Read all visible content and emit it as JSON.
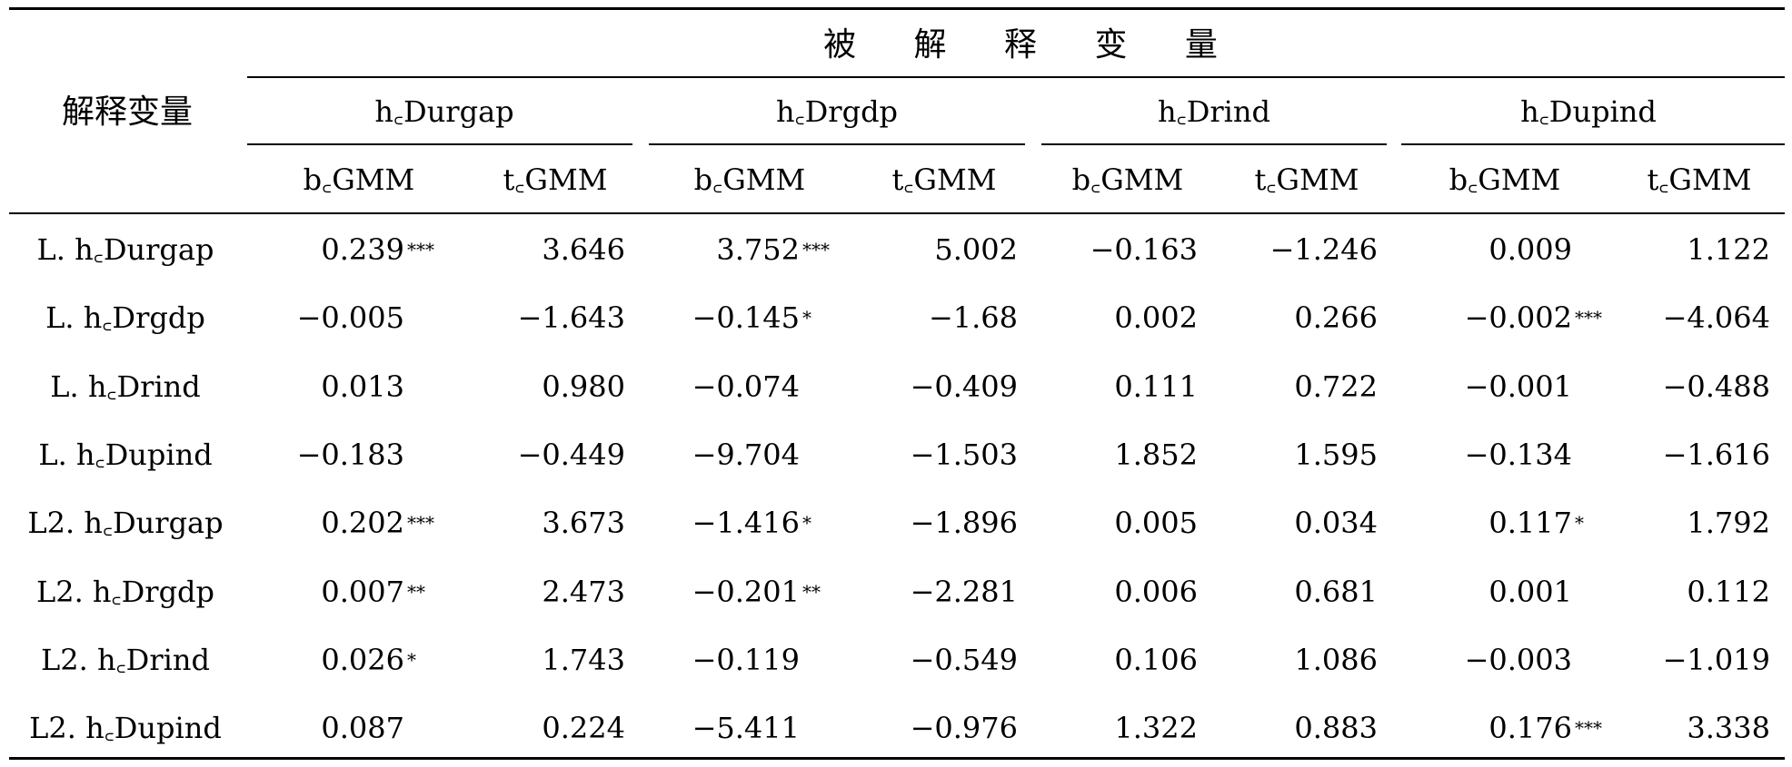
{
  "table": {
    "row_header": "解释变量",
    "group_header": "被 解 释 变 量",
    "dependents": [
      "h꜀Durgap",
      "h꜀Drgdp",
      "h꜀Drind",
      "h꜀Dupind"
    ],
    "subcols": [
      "b꜀GMM",
      "t꜀GMM"
    ],
    "rows": [
      {
        "label": "L. h꜀Durgap",
        "cells": [
          [
            "0.239",
            "***"
          ],
          [
            "3.646",
            ""
          ],
          [
            "3.752",
            "***"
          ],
          [
            "5.002",
            ""
          ],
          [
            "−0.163",
            ""
          ],
          [
            "−1.246",
            ""
          ],
          [
            "0.009",
            ""
          ],
          [
            "1.122",
            ""
          ]
        ]
      },
      {
        "label": "L. h꜀Drgdp",
        "cells": [
          [
            "−0.005",
            ""
          ],
          [
            "−1.643",
            ""
          ],
          [
            "−0.145",
            "*"
          ],
          [
            "−1.68",
            ""
          ],
          [
            "0.002",
            ""
          ],
          [
            "0.266",
            ""
          ],
          [
            "−0.002",
            "***"
          ],
          [
            "−4.064",
            ""
          ]
        ]
      },
      {
        "label": "L. h꜀Drind",
        "cells": [
          [
            "0.013",
            ""
          ],
          [
            "0.980",
            ""
          ],
          [
            "−0.074",
            ""
          ],
          [
            "−0.409",
            ""
          ],
          [
            "0.111",
            ""
          ],
          [
            "0.722",
            ""
          ],
          [
            "−0.001",
            ""
          ],
          [
            "−0.488",
            ""
          ]
        ]
      },
      {
        "label": "L. h꜀Dupind",
        "cells": [
          [
            "−0.183",
            ""
          ],
          [
            "−0.449",
            ""
          ],
          [
            "−9.704",
            ""
          ],
          [
            "−1.503",
            ""
          ],
          [
            "1.852",
            ""
          ],
          [
            "1.595",
            ""
          ],
          [
            "−0.134",
            ""
          ],
          [
            "−1.616",
            ""
          ]
        ]
      },
      {
        "label": "L2. h꜀Durgap",
        "cells": [
          [
            "0.202",
            "***"
          ],
          [
            "3.673",
            ""
          ],
          [
            "−1.416",
            "*"
          ],
          [
            "−1.896",
            ""
          ],
          [
            "0.005",
            ""
          ],
          [
            "0.034",
            ""
          ],
          [
            "0.117",
            "*"
          ],
          [
            "1.792",
            ""
          ]
        ]
      },
      {
        "label": "L2. h꜀Drgdp",
        "cells": [
          [
            "0.007",
            "**"
          ],
          [
            "2.473",
            ""
          ],
          [
            "−0.201",
            "**"
          ],
          [
            "−2.281",
            ""
          ],
          [
            "0.006",
            ""
          ],
          [
            "0.681",
            ""
          ],
          [
            "0.001",
            ""
          ],
          [
            "0.112",
            ""
          ]
        ]
      },
      {
        "label": "L2. h꜀Drind",
        "cells": [
          [
            "0.026",
            "*"
          ],
          [
            "1.743",
            ""
          ],
          [
            "−0.119",
            ""
          ],
          [
            "−0.549",
            ""
          ],
          [
            "0.106",
            ""
          ],
          [
            "1.086",
            ""
          ],
          [
            "−0.003",
            ""
          ],
          [
            "−1.019",
            ""
          ]
        ]
      },
      {
        "label": "L2. h꜀Dupind",
        "cells": [
          [
            "0.087",
            ""
          ],
          [
            "0.224",
            ""
          ],
          [
            "−5.411",
            ""
          ],
          [
            "−0.976",
            ""
          ],
          [
            "1.322",
            ""
          ],
          [
            "0.883",
            ""
          ],
          [
            "0.176",
            "***"
          ],
          [
            "3.338",
            ""
          ]
        ]
      }
    ]
  }
}
